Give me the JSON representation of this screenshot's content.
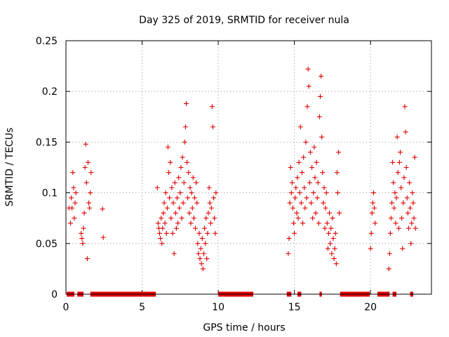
{
  "chart_data": {
    "type": "scatter",
    "title": "Day 325 of 2019, SRMTID for receiver nula",
    "xlabel": "GPS time / hours",
    "ylabel": "SRMTID / TECUs",
    "xlim": [
      0,
      24
    ],
    "ylim": [
      0,
      0.25
    ],
    "grid": true,
    "marker": "+",
    "series_color": "#e00000",
    "x_ticks": [
      {
        "value": 0,
        "label": "0"
      },
      {
        "value": 5,
        "label": "5"
      },
      {
        "value": 10,
        "label": "10"
      },
      {
        "value": 15,
        "label": "15"
      },
      {
        "value": 20,
        "label": "20"
      }
    ],
    "y_ticks": [
      {
        "value": 0,
        "label": "0"
      },
      {
        "value": 0.05,
        "label": "0.05"
      },
      {
        "value": 0.1,
        "label": "0.1"
      },
      {
        "value": 0.15,
        "label": "0.15"
      },
      {
        "value": 0.2,
        "label": "0.2"
      },
      {
        "value": 0.25,
        "label": "0.25"
      }
    ],
    "points": [
      [
        0.2,
        0.085
      ],
      [
        0.3,
        0.07
      ],
      [
        0.35,
        0.095
      ],
      [
        0.4,
        0.085
      ],
      [
        0.45,
        0.12
      ],
      [
        0.5,
        0.105
      ],
      [
        0.55,
        0.075
      ],
      [
        0.6,
        0.09
      ],
      [
        0.65,
        0.1
      ],
      [
        1.0,
        0.06
      ],
      [
        1.05,
        0.055
      ],
      [
        1.1,
        0.05
      ],
      [
        1.15,
        0.065
      ],
      [
        1.2,
        0.08
      ],
      [
        1.25,
        0.125
      ],
      [
        1.3,
        0.148
      ],
      [
        1.35,
        0.11
      ],
      [
        1.4,
        0.035
      ],
      [
        1.45,
        0.13
      ],
      [
        1.5,
        0.09
      ],
      [
        1.55,
        0.085
      ],
      [
        1.6,
        0.1
      ],
      [
        1.65,
        0.12
      ],
      [
        2.4,
        0.084
      ],
      [
        2.45,
        0.056
      ],
      [
        6.0,
        0.105
      ],
      [
        6.05,
        0.07
      ],
      [
        6.1,
        0.065
      ],
      [
        6.15,
        0.06
      ],
      [
        6.2,
        0.055
      ],
      [
        6.25,
        0.075
      ],
      [
        6.3,
        0.05
      ],
      [
        6.35,
        0.065
      ],
      [
        6.4,
        0.08
      ],
      [
        6.45,
        0.09
      ],
      [
        6.5,
        0.07
      ],
      [
        6.55,
        0.1
      ],
      [
        6.6,
        0.06
      ],
      [
        6.65,
        0.085
      ],
      [
        6.7,
        0.145
      ],
      [
        6.75,
        0.12
      ],
      [
        6.8,
        0.095
      ],
      [
        6.85,
        0.13
      ],
      [
        6.9,
        0.075
      ],
      [
        6.95,
        0.105
      ],
      [
        7.0,
        0.06
      ],
      [
        7.05,
        0.09
      ],
      [
        7.1,
        0.04
      ],
      [
        7.15,
        0.11
      ],
      [
        7.2,
        0.08
      ],
      [
        7.25,
        0.065
      ],
      [
        7.3,
        0.095
      ],
      [
        7.35,
        0.07
      ],
      [
        7.4,
        0.115
      ],
      [
        7.45,
        0.085
      ],
      [
        7.5,
        0.1
      ],
      [
        7.55,
        0.125
      ],
      [
        7.6,
        0.075
      ],
      [
        7.65,
        0.135
      ],
      [
        7.7,
        0.09
      ],
      [
        7.75,
        0.11
      ],
      [
        7.8,
        0.15
      ],
      [
        7.85,
        0.165
      ],
      [
        7.9,
        0.188
      ],
      [
        7.95,
        0.13
      ],
      [
        8.0,
        0.095
      ],
      [
        8.05,
        0.12
      ],
      [
        8.1,
        0.08
      ],
      [
        8.15,
        0.105
      ],
      [
        8.2,
        0.07
      ],
      [
        8.25,
        0.1
      ],
      [
        8.3,
        0.085
      ],
      [
        8.35,
        0.115
      ],
      [
        8.4,
        0.075
      ],
      [
        8.45,
        0.095
      ],
      [
        8.5,
        0.065
      ],
      [
        8.55,
        0.11
      ],
      [
        8.6,
        0.09
      ],
      [
        8.65,
        0.05
      ],
      [
        8.7,
        0.04
      ],
      [
        8.75,
        0.06
      ],
      [
        8.8,
        0.035
      ],
      [
        8.85,
        0.045
      ],
      [
        8.9,
        0.03
      ],
      [
        8.95,
        0.055
      ],
      [
        9.0,
        0.025
      ],
      [
        9.05,
        0.04
      ],
      [
        9.1,
        0.065
      ],
      [
        9.15,
        0.05
      ],
      [
        9.2,
        0.075
      ],
      [
        9.25,
        0.035
      ],
      [
        9.3,
        0.06
      ],
      [
        9.35,
        0.08
      ],
      [
        9.4,
        0.105
      ],
      [
        9.45,
        0.09
      ],
      [
        9.5,
        0.07
      ],
      [
        9.55,
        0.085
      ],
      [
        9.6,
        0.185
      ],
      [
        9.65,
        0.165
      ],
      [
        9.7,
        0.095
      ],
      [
        9.75,
        0.075
      ],
      [
        9.8,
        0.06
      ],
      [
        9.85,
        0.1
      ],
      [
        14.6,
        0.04
      ],
      [
        14.65,
        0.055
      ],
      [
        14.7,
        0.09
      ],
      [
        14.75,
        0.125
      ],
      [
        14.8,
        0.1
      ],
      [
        14.85,
        0.11
      ],
      [
        14.9,
        0.085
      ],
      [
        14.95,
        0.07
      ],
      [
        15.0,
        0.06
      ],
      [
        15.05,
        0.095
      ],
      [
        15.1,
        0.105
      ],
      [
        15.15,
        0.08
      ],
      [
        15.2,
        0.115
      ],
      [
        15.25,
        0.075
      ],
      [
        15.3,
        0.13
      ],
      [
        15.35,
        0.1
      ],
      [
        15.4,
        0.165
      ],
      [
        15.45,
        0.09
      ],
      [
        15.5,
        0.12
      ],
      [
        15.55,
        0.07
      ],
      [
        15.6,
        0.135
      ],
      [
        15.65,
        0.105
      ],
      [
        15.7,
        0.085
      ],
      [
        15.75,
        0.15
      ],
      [
        15.8,
        0.095
      ],
      [
        15.85,
        0.185
      ],
      [
        15.9,
        0.222
      ],
      [
        15.95,
        0.205
      ],
      [
        16.0,
        0.11
      ],
      [
        16.05,
        0.14
      ],
      [
        16.1,
        0.09
      ],
      [
        16.15,
        0.125
      ],
      [
        16.2,
        0.075
      ],
      [
        16.25,
        0.1
      ],
      [
        16.3,
        0.145
      ],
      [
        16.35,
        0.115
      ],
      [
        16.4,
        0.08
      ],
      [
        16.45,
        0.13
      ],
      [
        16.5,
        0.095
      ],
      [
        16.55,
        0.11
      ],
      [
        16.6,
        0.07
      ],
      [
        16.65,
        0.175
      ],
      [
        16.7,
        0.195
      ],
      [
        16.75,
        0.215
      ],
      [
        16.8,
        0.155
      ],
      [
        16.85,
        0.12
      ],
      [
        16.9,
        0.09
      ],
      [
        16.95,
        0.105
      ],
      [
        17.0,
        0.065
      ],
      [
        17.05,
        0.085
      ],
      [
        17.1,
        0.1
      ],
      [
        17.15,
        0.07
      ],
      [
        17.2,
        0.045
      ],
      [
        17.25,
        0.06
      ],
      [
        17.3,
        0.08
      ],
      [
        17.35,
        0.05
      ],
      [
        17.4,
        0.065
      ],
      [
        17.45,
        0.04
      ],
      [
        17.5,
        0.075
      ],
      [
        17.55,
        0.055
      ],
      [
        17.6,
        0.035
      ],
      [
        17.65,
        0.045
      ],
      [
        17.7,
        0.06
      ],
      [
        17.75,
        0.03
      ],
      [
        17.8,
        0.12
      ],
      [
        17.85,
        0.1
      ],
      [
        17.9,
        0.14
      ],
      [
        17.95,
        0.08
      ],
      [
        20.0,
        0.045
      ],
      [
        20.05,
        0.06
      ],
      [
        20.1,
        0.08
      ],
      [
        20.15,
        0.09
      ],
      [
        20.2,
        0.1
      ],
      [
        20.25,
        0.085
      ],
      [
        20.3,
        0.07
      ],
      [
        21.2,
        0.025
      ],
      [
        21.25,
        0.04
      ],
      [
        21.3,
        0.06
      ],
      [
        21.35,
        0.075
      ],
      [
        21.4,
        0.09
      ],
      [
        21.45,
        0.13
      ],
      [
        21.5,
        0.11
      ],
      [
        21.55,
        0.085
      ],
      [
        21.6,
        0.1
      ],
      [
        21.65,
        0.07
      ],
      [
        21.7,
        0.095
      ],
      [
        21.75,
        0.155
      ],
      [
        21.8,
        0.12
      ],
      [
        21.85,
        0.065
      ],
      [
        21.9,
        0.13
      ],
      [
        21.95,
        0.14
      ],
      [
        22.0,
        0.105
      ],
      [
        22.05,
        0.075
      ],
      [
        22.1,
        0.045
      ],
      [
        22.15,
        0.09
      ],
      [
        22.2,
        0.115
      ],
      [
        22.25,
        0.185
      ],
      [
        22.3,
        0.16
      ],
      [
        22.35,
        0.125
      ],
      [
        22.4,
        0.095
      ],
      [
        22.45,
        0.08
      ],
      [
        22.5,
        0.065
      ],
      [
        22.55,
        0.11
      ],
      [
        22.6,
        0.085
      ],
      [
        22.65,
        0.05
      ],
      [
        22.7,
        0.07
      ],
      [
        22.75,
        0.1
      ],
      [
        22.8,
        0.09
      ],
      [
        22.85,
        0.075
      ],
      [
        22.9,
        0.135
      ],
      [
        22.95,
        0.065
      ]
    ],
    "zero_segments": [
      [
        0.05,
        0.55
      ],
      [
        0.75,
        1.15
      ],
      [
        1.6,
        5.9
      ],
      [
        10.0,
        12.3
      ],
      [
        14.5,
        14.8
      ],
      [
        15.2,
        15.45
      ],
      [
        16.65,
        16.8
      ],
      [
        18.0,
        19.95
      ],
      [
        20.45,
        21.25
      ],
      [
        21.45,
        21.7
      ],
      [
        22.6,
        22.8
      ]
    ]
  }
}
